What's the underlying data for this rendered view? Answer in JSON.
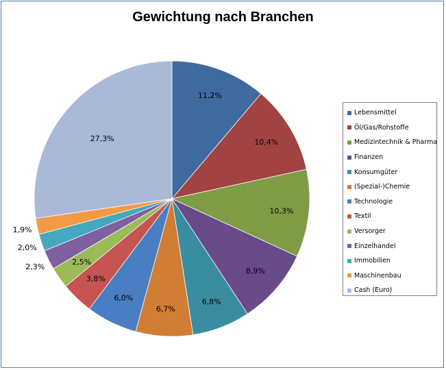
{
  "chart_data": {
    "type": "pie",
    "title": "Gewichtung nach Branchen",
    "legend_position": "right",
    "slices": [
      {
        "name": "Lebensmittel",
        "label": "11,2%",
        "value": 11.2,
        "color": "#3e6aa0"
      },
      {
        "name": "Öl/Gas/Rohstoffe",
        "label": "10,4%",
        "value": 10.4,
        "color": "#a14343"
      },
      {
        "name": "Medizintechnik & Pharma",
        "label": "10,3%",
        "value": 10.3,
        "color": "#7f9c45"
      },
      {
        "name": "Finanzen",
        "label": "8,9%",
        "value": 8.9,
        "color": "#6a4b8a"
      },
      {
        "name": "Konsumgüter",
        "label": "6,8%",
        "value": 6.8,
        "color": "#3a8da0"
      },
      {
        "name": "(Spezial-)Chemie",
        "label": "6,7%",
        "value": 6.7,
        "color": "#d07d36"
      },
      {
        "name": "Technologie",
        "label": "6,0%",
        "value": 6.0,
        "color": "#4a7ec3"
      },
      {
        "name": "Textil",
        "label": "3,8%",
        "value": 3.8,
        "color": "#c65452"
      },
      {
        "name": "Versorger",
        "label": "2,5%",
        "value": 2.5,
        "color": "#9bbb59"
      },
      {
        "name": "Einzelhandel",
        "label": "2,3%",
        "value": 2.3,
        "color": "#7f60a1"
      },
      {
        "name": "Immobilien",
        "label": "2,0%",
        "value": 2.0,
        "color": "#44a8c0"
      },
      {
        "name": "Maschinenbau",
        "label": "1,9%",
        "value": 1.9,
        "color": "#f39a47"
      },
      {
        "name": "Cash (Euro)",
        "label": "27,3%",
        "value": 27.3,
        "color": "#a9b9d7"
      }
    ]
  }
}
